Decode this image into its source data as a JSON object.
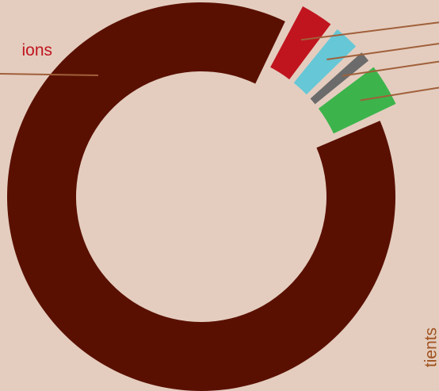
{
  "background_color": "#e4cdbf",
  "chart_data": {
    "type": "pie",
    "style": "donut",
    "title": "",
    "slices": [
      {
        "label": "ions",
        "value": 88.5,
        "color": "#5a1000",
        "label_color": "#c0151f"
      },
      {
        "label": "",
        "value": 3.4,
        "color": "#c0151f"
      },
      {
        "label": "",
        "value": 2.6,
        "color": "#66c7d6"
      },
      {
        "label": "",
        "value": 1.1,
        "color": "#6b6b6b"
      },
      {
        "label": "",
        "value": 4.4,
        "color": "#3cb44b"
      }
    ],
    "side_label": "tients",
    "side_label_color": "#a0521f",
    "leader_color": "#a0603a",
    "legend": "none"
  }
}
